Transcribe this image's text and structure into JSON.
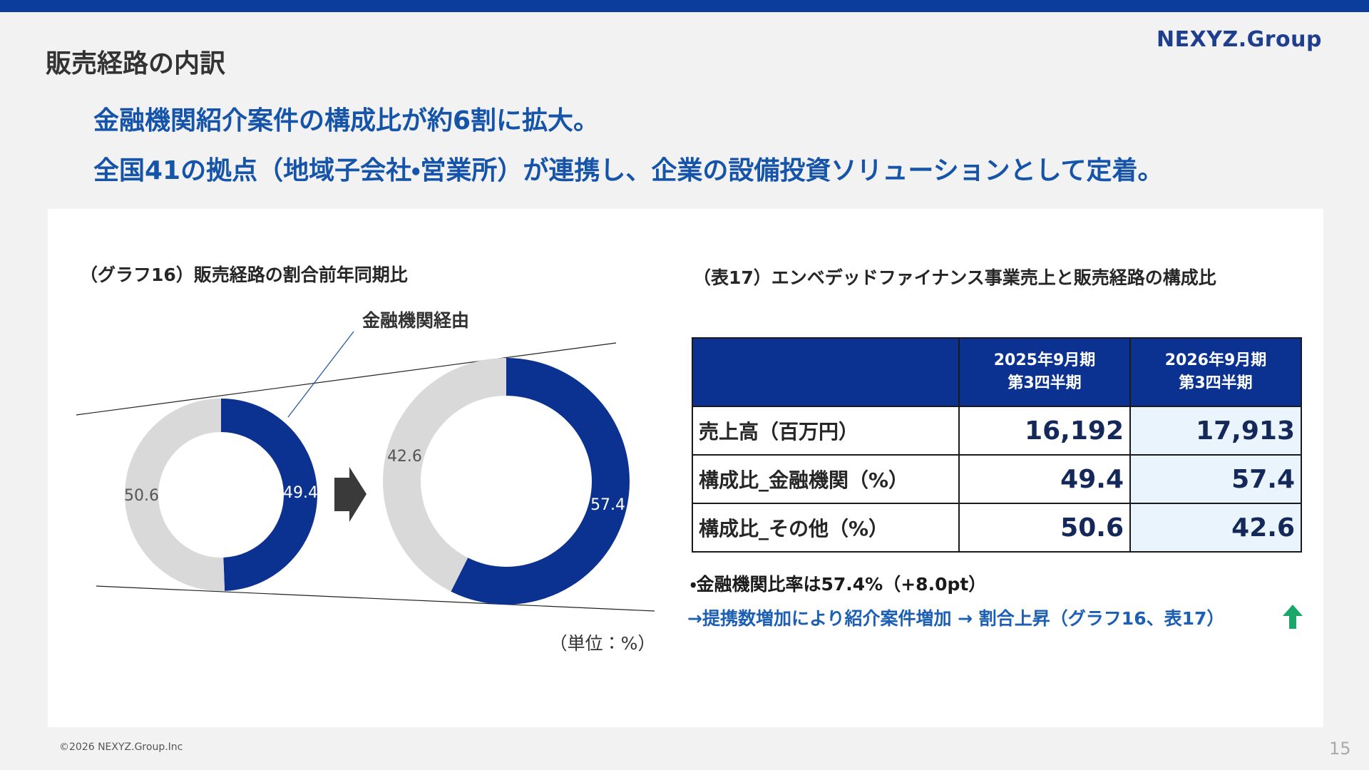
{
  "header": {
    "title": "販売経路の内訳",
    "logo": "NEXYZ.Group"
  },
  "headline": [
    "金融機関紹介案件の構成比が約6割に拡大。",
    "全国41の拠点（地域子会社・営業所）が連携し、企業の設備投資ソリューションとして定着。"
  ],
  "chart_section": {
    "title": "（グラフ16）販売経路の割合前年同期比",
    "annotation": "金融機関経由",
    "unit": "（単位：%）"
  },
  "chart_data": [
    {
      "type": "pie",
      "values": [
        49.4,
        50.6
      ],
      "colors": [
        "#0b3291",
        "#d9d9d9"
      ]
    },
    {
      "type": "pie",
      "values": [
        57.4,
        42.6
      ],
      "colors": [
        "#0b3291",
        "#d9d9d9"
      ]
    }
  ],
  "table": {
    "title": "（表17）エンベデッドファイナンス事業売上と販売経路の構成比",
    "columns": [
      [
        "2025年9月期",
        "第3四半期"
      ],
      [
        "2026年9月期",
        "第3四半期"
      ]
    ],
    "rows": [
      [
        "売上高（百万円）",
        "16,192",
        "17,913"
      ],
      [
        "構成比_金融機関（%）",
        "49.4",
        "57.4"
      ],
      [
        "構成比_その他（%）",
        "50.6",
        "42.6"
      ]
    ]
  },
  "notes": [
    "・金融機関比率は57.4%（+8.0pt）",
    "→提携数増加により紹介案件増加 → 割合上昇（グラフ16、表17）"
  ],
  "footer": {
    "copyright": "©2026 NEXYZ.Group.Inc",
    "page": "15"
  }
}
